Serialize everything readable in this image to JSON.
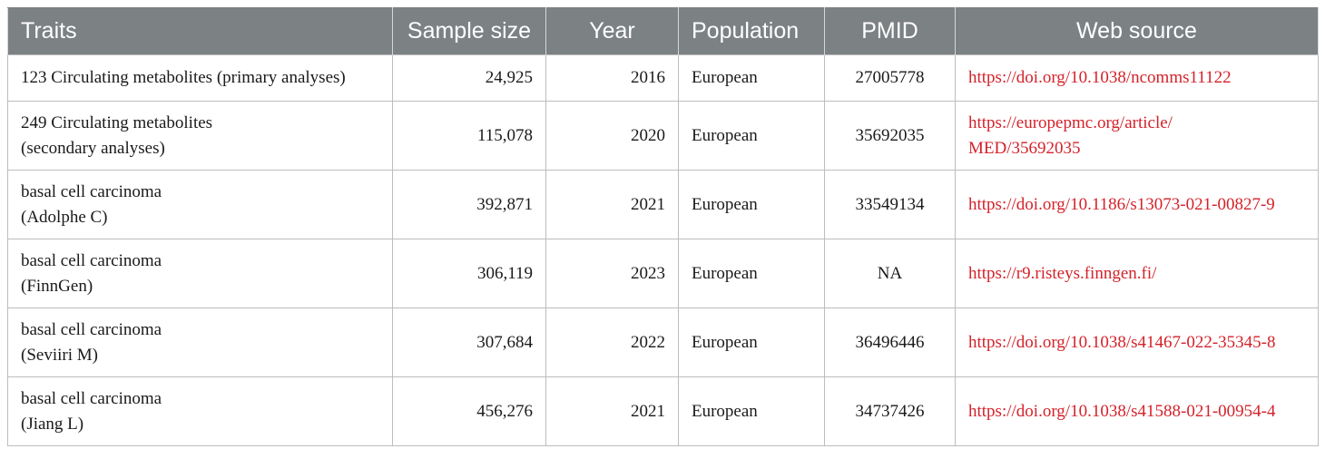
{
  "table": {
    "headers": [
      "Traits",
      "Sample size",
      "Year",
      "Population",
      "PMID",
      "Web source"
    ],
    "rows": [
      {
        "trait_line1": "123 Circulating metabolites (primary analyses)",
        "trait_line2": "",
        "sample_size": "24,925",
        "year": "2016",
        "population": "European",
        "pmid": "27005778",
        "web_line1": "https://doi.org/10.1038/ncomms11122",
        "web_line2": ""
      },
      {
        "trait_line1": "249 Circulating metabolites",
        "trait_line2": "(secondary analyses)",
        "sample_size": "115,078",
        "year": "2020",
        "population": "European",
        "pmid": "35692035",
        "web_line1": "https://europepmc.org/article/",
        "web_line2": "MED/35692035"
      },
      {
        "trait_line1": "basal cell carcinoma",
        "trait_line2": "(Adolphe C)",
        "sample_size": "392,871",
        "year": "2021",
        "population": "European",
        "pmid": "33549134",
        "web_line1": "https://doi.org/10.1186/s13073-021-00827-9",
        "web_line2": ""
      },
      {
        "trait_line1": "basal cell carcinoma",
        "trait_line2": "(FinnGen)",
        "sample_size": "306,119",
        "year": "2023",
        "population": "European",
        "pmid": "NA",
        "web_line1": "https://r9.risteys.finngen.fi/",
        "web_line2": ""
      },
      {
        "trait_line1": "basal cell carcinoma",
        "trait_line2": "(Seviiri M)",
        "sample_size": "307,684",
        "year": "2022",
        "population": "European",
        "pmid": "36496446",
        "web_line1": "https://doi.org/10.1038/s41467-022-35345-8",
        "web_line2": ""
      },
      {
        "trait_line1": "basal cell carcinoma",
        "trait_line2": "(Jiang L)",
        "sample_size": "456,276",
        "year": "2021",
        "population": "European",
        "pmid": "34737426",
        "web_line1": "https://doi.org/10.1038/s41588-021-00954-4",
        "web_line2": ""
      }
    ]
  }
}
